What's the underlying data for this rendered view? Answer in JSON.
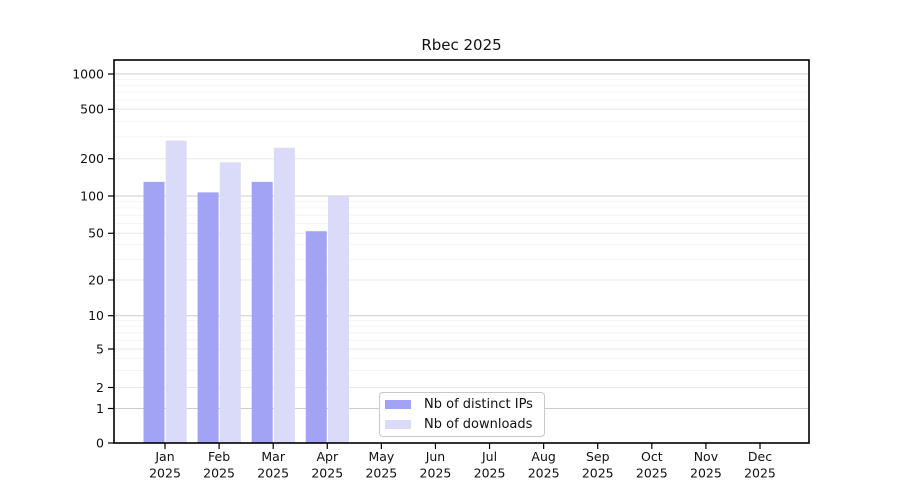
{
  "chart_data": {
    "type": "bar",
    "title": "Rbec 2025",
    "months": [
      "Jan",
      "Feb",
      "Mar",
      "Apr",
      "May",
      "Jun",
      "Jul",
      "Aug",
      "Sep",
      "Oct",
      "Nov",
      "Dec"
    ],
    "year_label": "2025",
    "series": [
      {
        "name": "Nb of distinct IPs",
        "color": "#a3a3f5",
        "values": [
          130,
          107,
          130,
          52,
          0,
          0,
          0,
          0,
          0,
          0,
          0,
          0
        ]
      },
      {
        "name": "Nb of downloads",
        "color": "#dadaf9",
        "values": [
          280,
          187,
          245,
          100,
          0,
          0,
          0,
          0,
          0,
          0,
          0,
          0
        ]
      }
    ],
    "y_ticks": [
      0,
      1,
      2,
      5,
      10,
      20,
      50,
      100,
      200,
      500,
      1000
    ],
    "y_scale": "log (with 0 baseline)",
    "ylim": [
      0,
      1000
    ],
    "grid": "horizontal",
    "legend_position": "bottom-center",
    "axis_color": "#000000",
    "background": "#ffffff"
  }
}
